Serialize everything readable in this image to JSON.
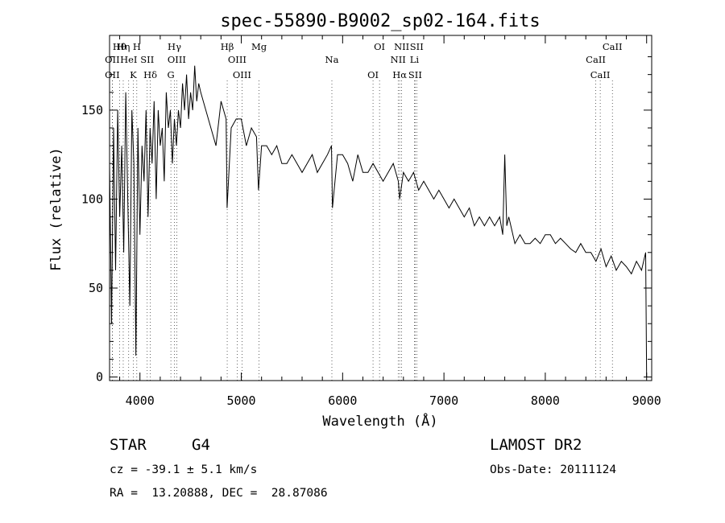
{
  "chart_data": {
    "type": "line",
    "title": "spec-55890-B9002_sp02-164.fits",
    "xlabel": "Wavelength (Å)",
    "ylabel": "Flux (relative)",
    "xlim": [
      3700,
      9050
    ],
    "ylim": [
      -2,
      192
    ],
    "xticks": [
      4000,
      5000,
      6000,
      7000,
      8000,
      9000
    ],
    "yticks": [
      0,
      50,
      100,
      150
    ],
    "grid": false,
    "series": [
      {
        "x": [
          3700,
          3720,
          3740,
          3760,
          3780,
          3800,
          3820,
          3840,
          3860,
          3880,
          3900,
          3920,
          3940,
          3960,
          3980,
          4000,
          4020,
          4040,
          4060,
          4080,
          4100,
          4120,
          4140,
          4160,
          4180,
          4200,
          4220,
          4240,
          4260,
          4280,
          4300,
          4320,
          4340,
          4360,
          4380,
          4400,
          4420,
          4440,
          4460,
          4480,
          4500,
          4520,
          4540,
          4560,
          4580,
          4600,
          4650,
          4700,
          4750,
          4800,
          4850,
          4860,
          4900,
          4950,
          5000,
          5050,
          5100,
          5150,
          5170,
          5200,
          5250,
          5300,
          5350,
          5400,
          5450,
          5500,
          5550,
          5600,
          5650,
          5700,
          5750,
          5800,
          5850,
          5890,
          5900,
          5950,
          6000,
          6050,
          6100,
          6150,
          6200,
          6250,
          6300,
          6350,
          6400,
          6450,
          6500,
          6550,
          6563,
          6600,
          6650,
          6700,
          6750,
          6800,
          6850,
          6900,
          6950,
          7000,
          7050,
          7100,
          7150,
          7200,
          7250,
          7300,
          7350,
          7400,
          7450,
          7500,
          7550,
          7580,
          7600,
          7620,
          7640,
          7700,
          7750,
          7800,
          7850,
          7900,
          7950,
          8000,
          8050,
          8100,
          8150,
          8200,
          8250,
          8300,
          8350,
          8400,
          8450,
          8500,
          8550,
          8600,
          8650,
          8700,
          8750,
          8800,
          8850,
          8900,
          8950,
          8990,
          9000
        ],
        "y": [
          120,
          30,
          140,
          60,
          150,
          90,
          130,
          70,
          160,
          100,
          40,
          150,
          120,
          12,
          140,
          80,
          130,
          110,
          150,
          90,
          140,
          120,
          155,
          100,
          150,
          130,
          140,
          110,
          160,
          140,
          150,
          120,
          145,
          130,
          150,
          140,
          165,
          150,
          170,
          145,
          160,
          150,
          175,
          155,
          165,
          160,
          150,
          140,
          130,
          155,
          145,
          95,
          140,
          145,
          145,
          130,
          140,
          135,
          105,
          130,
          130,
          125,
          130,
          120,
          120,
          125,
          120,
          115,
          120,
          125,
          115,
          120,
          125,
          130,
          95,
          125,
          125,
          120,
          110,
          125,
          115,
          115,
          120,
          115,
          110,
          115,
          120,
          110,
          100,
          115,
          110,
          115,
          105,
          110,
          105,
          100,
          105,
          100,
          95,
          100,
          95,
          90,
          95,
          85,
          90,
          85,
          90,
          85,
          90,
          80,
          125,
          85,
          90,
          75,
          80,
          75,
          75,
          78,
          75,
          80,
          80,
          75,
          78,
          75,
          72,
          70,
          75,
          70,
          70,
          65,
          72,
          62,
          68,
          60,
          65,
          62,
          58,
          65,
          60,
          70,
          0
        ]
      }
    ],
    "lines": [
      {
        "name": "Hθ",
        "wave": 3798
      },
      {
        "name": "OII",
        "wave": 3727
      },
      {
        "name": "OII",
        "wave": 3727
      },
      {
        "name": "Hη",
        "wave": 3835
      },
      {
        "name": "HeI",
        "wave": 3889
      },
      {
        "name": "K",
        "wave": 3934
      },
      {
        "name": "H",
        "wave": 3969
      },
      {
        "name": "SII",
        "wave": 4072
      },
      {
        "name": "Hδ",
        "wave": 4102
      },
      {
        "name": "Hγ",
        "wave": 4340
      },
      {
        "name": "OIII",
        "wave": 4363
      },
      {
        "name": "G",
        "wave": 4305
      },
      {
        "name": "Hβ",
        "wave": 4861
      },
      {
        "name": "OIII",
        "wave": 4959
      },
      {
        "name": "OIII",
        "wave": 5007
      },
      {
        "name": "Mg",
        "wave": 5175
      },
      {
        "name": "Na",
        "wave": 5894
      },
      {
        "name": "OI",
        "wave": 6300
      },
      {
        "name": "OI",
        "wave": 6364
      },
      {
        "name": "NII",
        "wave": 6548
      },
      {
        "name": "Hα",
        "wave": 6563
      },
      {
        "name": "NII",
        "wave": 6583
      },
      {
        "name": "Li",
        "wave": 6708
      },
      {
        "name": "SII",
        "wave": 6716
      },
      {
        "name": "SII",
        "wave": 6731
      },
      {
        "name": "CaII",
        "wave": 8498
      },
      {
        "name": "CaII",
        "wave": 8542
      },
      {
        "name": "CaII",
        "wave": 8662
      }
    ]
  },
  "info": {
    "class_text": "STAR",
    "subclass_text": "G4",
    "cz_text": "cz = -39.1 ± 5.1 km/s",
    "radec_text": "RA =  13.20888, DEC =  28.87086",
    "survey_text": "LAMOST DR2",
    "obsdate_text": "Obs-Date: 20111124"
  }
}
